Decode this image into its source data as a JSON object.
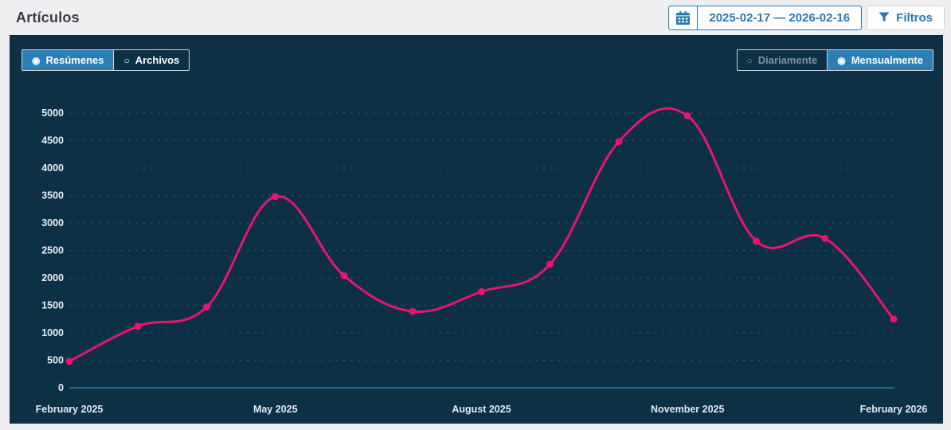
{
  "header": {
    "title": "Artículos",
    "date_range": "2025-02-17 — 2026-02-16",
    "filters_label": "Filtros"
  },
  "toggles": {
    "dataset": [
      {
        "label": "Resúmenes",
        "selected": true
      },
      {
        "label": "Archivos",
        "selected": false
      }
    ],
    "granularity": [
      {
        "label": "Diariamente",
        "selected": false
      },
      {
        "label": "Mensualmente",
        "selected": true
      }
    ]
  },
  "icons": {
    "calendar": "calendar-icon",
    "filter": "funnel-icon",
    "radio_selected": "◉",
    "radio_unselected": "○"
  },
  "colors": {
    "accent_blue": "#2679b2",
    "toggle_selected_bg": "#2980b9",
    "panel_bg": "#0d3045",
    "line_pink": "#e8156d",
    "grid_dots": "#2a5876",
    "axis_line": "#2a7ba6",
    "tick_text": "#e9eff4",
    "muted_toggle_text": "#7b93a3",
    "page_bg": "#efeff1"
  },
  "chart_data": {
    "type": "line",
    "x": [
      "Feb 2025",
      "Mar 2025",
      "Apr 2025",
      "May 2025",
      "Jun 2025",
      "Jul 2025",
      "Aug 2025",
      "Sep 2025",
      "Oct 2025",
      "Nov 2025",
      "Dec 2025",
      "Jan 2026",
      "Feb 2026"
    ],
    "values": [
      480,
      1120,
      1470,
      3480,
      2040,
      1390,
      1750,
      2250,
      4480,
      4950,
      2670,
      2720,
      1250
    ],
    "x_tick_idx": [
      0,
      3,
      6,
      9,
      12
    ],
    "x_tick_labels": [
      "February 2025",
      "May 2025",
      "August 2025",
      "November 2025",
      "February 2026"
    ],
    "y_ticks": [
      0,
      500,
      1000,
      1500,
      2000,
      2500,
      3000,
      3500,
      4000,
      4500,
      5000
    ],
    "ylim": [
      0,
      5000
    ],
    "line_color": "#e8156d",
    "grid_color": "#2a5876",
    "axis_color": "#2a7ba6",
    "grid": "dotted-horizontal",
    "legend": "none",
    "smoothing": true
  }
}
